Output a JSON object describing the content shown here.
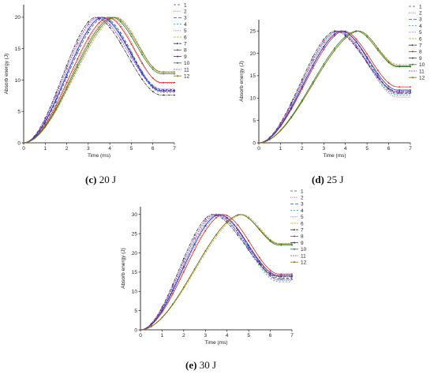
{
  "captions": [
    {
      "letter": "(c)",
      "text": "20 J"
    },
    {
      "letter": "(d)",
      "text": "25 J"
    },
    {
      "letter": "(e)",
      "text": "30 J"
    }
  ],
  "chart_data": [
    {
      "type": "line",
      "xlabel": "Time (ms)",
      "ylabel": "Absorb energy (J)",
      "xlim": [
        0,
        7
      ],
      "ylim": [
        0,
        22
      ],
      "xticks": [
        0,
        1,
        2,
        3,
        4,
        5,
        6,
        7
      ],
      "yticks": [
        0,
        5,
        10,
        15,
        20
      ],
      "legend_position": "top-right",
      "series": [
        {
          "name": "1",
          "color": "#555555",
          "peak": 20,
          "t_peak": 3.6,
          "end": 8.5
        },
        {
          "name": "2",
          "color": "#d04040",
          "peak": 20,
          "t_peak": 4.0,
          "end": 9.5
        },
        {
          "name": "3",
          "color": "#3050c0",
          "peak": 20,
          "t_peak": 3.7,
          "end": 8.3
        },
        {
          "name": "4",
          "color": "#2aa0a0",
          "peak": 20,
          "t_peak": 3.6,
          "end": 8.0
        },
        {
          "name": "5",
          "color": "#8080d0",
          "peak": 20,
          "t_peak": 3.5,
          "end": 8.6
        },
        {
          "name": "6",
          "color": "#b0b040",
          "peak": 20,
          "t_peak": 4.3,
          "end": 11.2
        },
        {
          "name": "7",
          "color": "#333333",
          "peak": 20,
          "t_peak": 3.3,
          "end": 7.6
        },
        {
          "name": "8",
          "color": "#e02020",
          "peak": 20,
          "t_peak": 3.9,
          "end": 9.6
        },
        {
          "name": "9",
          "color": "#2030d0",
          "peak": 20,
          "t_peak": 3.6,
          "end": 8.2
        },
        {
          "name": "10",
          "color": "#208020",
          "peak": 20,
          "t_peak": 4.1,
          "end": 11.0
        },
        {
          "name": "11",
          "color": "#9030c0",
          "peak": 20,
          "t_peak": 3.4,
          "end": 8.4
        },
        {
          "name": "12",
          "color": "#8a6a10",
          "peak": 20,
          "t_peak": 4.2,
          "end": 11.3
        }
      ]
    },
    {
      "type": "line",
      "xlabel": "Time (ms)",
      "ylabel": "Absorb energy (J)",
      "xlim": [
        0,
        7
      ],
      "ylim": [
        0,
        27.5
      ],
      "xticks": [
        0,
        1,
        2,
        3,
        4,
        5,
        6,
        7
      ],
      "yticks": [
        0,
        5,
        10,
        15,
        20,
        25
      ],
      "legend_position": "top-right",
      "series": [
        {
          "name": "1",
          "color": "#555555",
          "peak": 25,
          "t_peak": 3.8,
          "end": 11.0
        },
        {
          "name": "2",
          "color": "#d04040",
          "peak": 25,
          "t_peak": 3.7,
          "end": 10.2
        },
        {
          "name": "3",
          "color": "#3050c0",
          "peak": 25,
          "t_peak": 3.8,
          "end": 11.2
        },
        {
          "name": "4",
          "color": "#2aa0a0",
          "peak": 25,
          "t_peak": 3.6,
          "end": 10.6
        },
        {
          "name": "5",
          "color": "#8080d0",
          "peak": 25,
          "t_peak": 3.7,
          "end": 10.8
        },
        {
          "name": "6",
          "color": "#b0b040",
          "peak": 25,
          "t_peak": 4.6,
          "end": 17.5
        },
        {
          "name": "7",
          "color": "#333333",
          "peak": 25,
          "t_peak": 3.5,
          "end": 11.5
        },
        {
          "name": "8",
          "color": "#e02020",
          "peak": 25,
          "t_peak": 3.9,
          "end": 12.5
        },
        {
          "name": "9",
          "color": "#2030d0",
          "peak": 25,
          "t_peak": 3.8,
          "end": 11.8
        },
        {
          "name": "10",
          "color": "#208020",
          "peak": 25,
          "t_peak": 4.5,
          "end": 17.0
        },
        {
          "name": "11",
          "color": "#9030c0",
          "peak": 25,
          "t_peak": 3.6,
          "end": 11.3
        },
        {
          "name": "12",
          "color": "#8a6a10",
          "peak": 25,
          "t_peak": 4.6,
          "end": 17.2
        }
      ]
    },
    {
      "type": "line",
      "xlabel": "Time (ms)",
      "ylabel": "Absorb energy (J)",
      "xlim": [
        0,
        7
      ],
      "ylim": [
        0,
        32
      ],
      "xticks": [
        0,
        1,
        2,
        3,
        4,
        5,
        6,
        7
      ],
      "yticks": [
        0,
        5,
        10,
        15,
        20,
        25,
        30
      ],
      "legend_position": "top-right",
      "series": [
        {
          "name": "1",
          "color": "#555555",
          "peak": 30,
          "t_peak": 3.6,
          "end": 13.5
        },
        {
          "name": "2",
          "color": "#d04040",
          "peak": 30,
          "t_peak": 3.7,
          "end": 12.8
        },
        {
          "name": "3",
          "color": "#3050c0",
          "peak": 30,
          "t_peak": 3.6,
          "end": 13.2
        },
        {
          "name": "4",
          "color": "#2aa0a0",
          "peak": 30,
          "t_peak": 3.5,
          "end": 12.5
        },
        {
          "name": "5",
          "color": "#8080d0",
          "peak": 30,
          "t_peak": 3.5,
          "end": 13.0
        },
        {
          "name": "6",
          "color": "#b0b040",
          "peak": 30,
          "t_peak": 4.7,
          "end": 22.5
        },
        {
          "name": "7",
          "color": "#333333",
          "peak": 30,
          "t_peak": 3.3,
          "end": 13.8
        },
        {
          "name": "8",
          "color": "#e02020",
          "peak": 30,
          "t_peak": 3.8,
          "end": 14.5
        },
        {
          "name": "9",
          "color": "#2030d0",
          "peak": 30,
          "t_peak": 3.6,
          "end": 14.0
        },
        {
          "name": "10",
          "color": "#208020",
          "peak": 30,
          "t_peak": 4.6,
          "end": 22.0
        },
        {
          "name": "11",
          "color": "#9030c0",
          "peak": 30,
          "t_peak": 3.4,
          "end": 14.2
        },
        {
          "name": "12",
          "color": "#8a6a10",
          "peak": 30,
          "t_peak": 4.6,
          "end": 22.3
        }
      ]
    }
  ]
}
